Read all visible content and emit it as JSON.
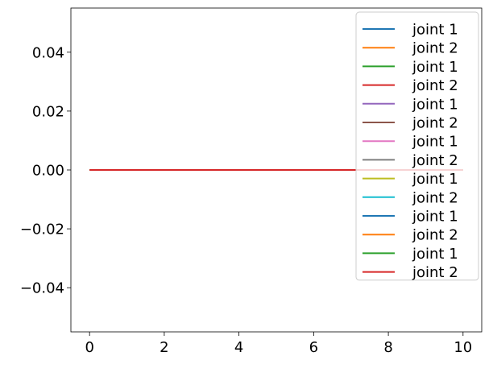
{
  "chart_data": {
    "type": "line",
    "title": "",
    "xlabel": "",
    "ylabel": "",
    "xlim": [
      -0.5,
      10.5
    ],
    "ylim": [
      -0.055,
      0.055
    ],
    "x_ticks": [
      0,
      2,
      4,
      6,
      8,
      10
    ],
    "x_tick_labels": [
      "0",
      "2",
      "4",
      "6",
      "8",
      "10"
    ],
    "y_ticks": [
      0.04,
      0.02,
      0.0,
      -0.02,
      -0.04
    ],
    "y_tick_labels": [
      "0.04",
      "0.02",
      "0.00",
      "−0.02",
      "−0.04"
    ],
    "grid": false,
    "legend_position": "right",
    "x": [
      0,
      10
    ],
    "series": [
      {
        "name": "joint 1",
        "color": "#1f77b4",
        "values": [
          0,
          0
        ]
      },
      {
        "name": "joint 2",
        "color": "#ff7f0e",
        "values": [
          0,
          0
        ]
      },
      {
        "name": "joint 1",
        "color": "#2ca02c",
        "values": [
          0,
          0
        ]
      },
      {
        "name": "joint 2",
        "color": "#d62728",
        "values": [
          0,
          0
        ]
      },
      {
        "name": "joint 1",
        "color": "#9467bd",
        "values": [
          0,
          0
        ]
      },
      {
        "name": "joint 2",
        "color": "#8c564b",
        "values": [
          0,
          0
        ]
      },
      {
        "name": "joint 1",
        "color": "#e377c2",
        "values": [
          0,
          0
        ]
      },
      {
        "name": "joint 2",
        "color": "#7f7f7f",
        "values": [
          0,
          0
        ]
      },
      {
        "name": "joint 1",
        "color": "#bcbd22",
        "values": [
          0,
          0
        ]
      },
      {
        "name": "joint 2",
        "color": "#17becf",
        "values": [
          0,
          0
        ]
      },
      {
        "name": "joint 1",
        "color": "#1f77b4",
        "values": [
          0,
          0
        ]
      },
      {
        "name": "joint 2",
        "color": "#ff7f0e",
        "values": [
          0,
          0
        ]
      },
      {
        "name": "joint 1",
        "color": "#2ca02c",
        "values": [
          0,
          0
        ]
      },
      {
        "name": "joint 2",
        "color": "#d62728",
        "values": [
          0,
          0
        ]
      }
    ]
  }
}
